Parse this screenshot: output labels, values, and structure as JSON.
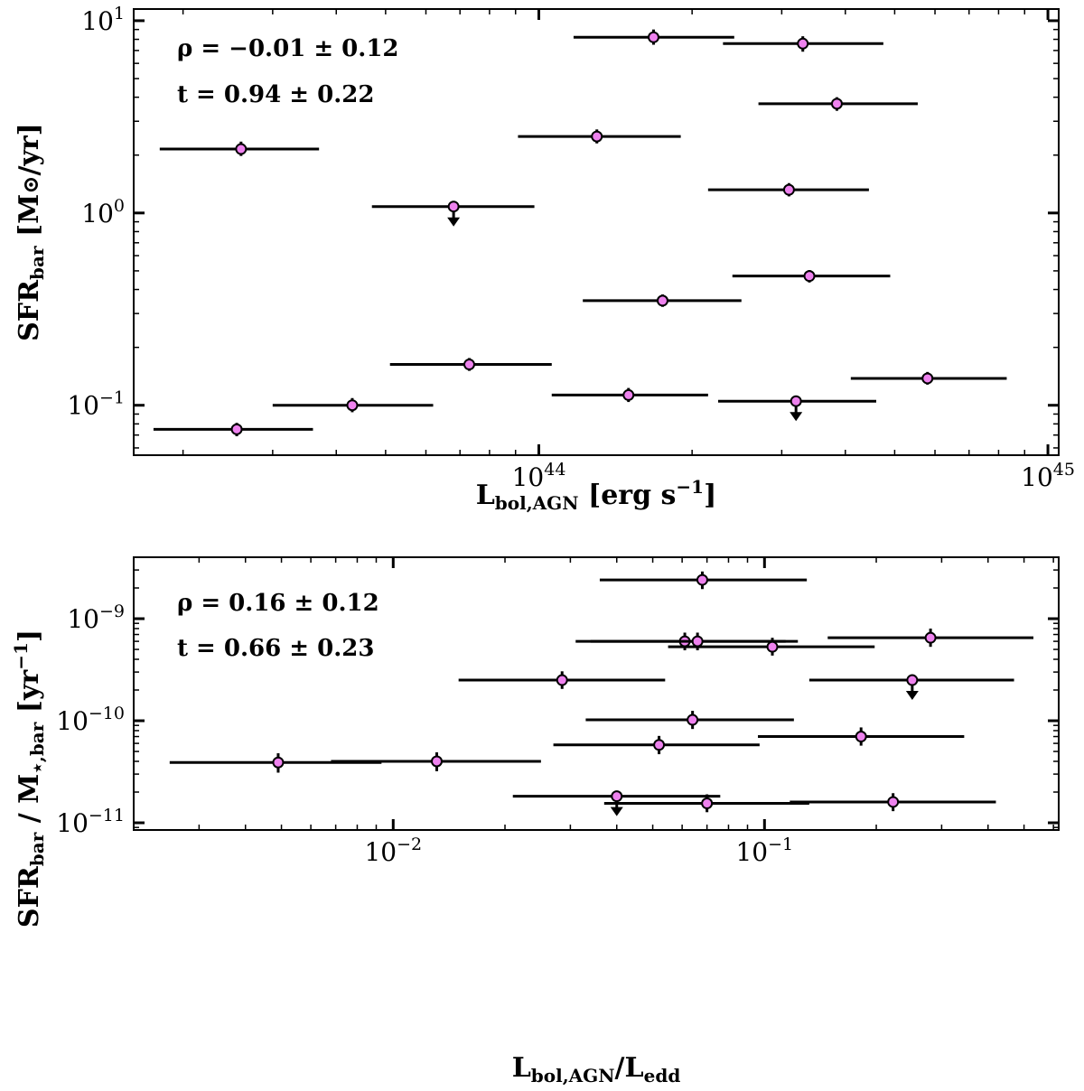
{
  "chart_data": [
    {
      "type": "scatter",
      "panel": "top",
      "xscale": "log",
      "yscale": "log",
      "xlim": [
        1.6e+43,
        1.05e+45
      ],
      "ylim": [
        0.055,
        11.5
      ],
      "xlabel": {
        "main": "L",
        "sub": "bol,AGN",
        "unit": "[erg s",
        "unit_sup": "−1",
        "unit_end": "]"
      },
      "ylabel": {
        "main": "SFR",
        "sub": "bar",
        "unit": "[M",
        "unit_sym": "⊙",
        "unit_end": "/yr]"
      },
      "xticks": [
        {
          "value": 1e+44,
          "base": "10",
          "exp": "44"
        },
        {
          "value": 1e+45,
          "base": "10",
          "exp": "45"
        }
      ],
      "yticks": [
        {
          "value": 0.1,
          "base": "10",
          "exp": "−1"
        },
        {
          "value": 1,
          "base": "10",
          "exp": "0"
        },
        {
          "value": 10,
          "base": "10",
          "exp": "1"
        }
      ],
      "annotations": [
        {
          "text": "ρ = −0.01 ± 0.12"
        },
        {
          "text": "t = 0.94 ± 0.22"
        }
      ],
      "marker_color": "#ee82ee",
      "points": [
        {
          "x": 2.55e+43,
          "xlo": 1.75e+43,
          "xhi": 3.6e+43,
          "y": 0.075,
          "ylo": 0.069,
          "yhi": 0.081,
          "upper_limit": false
        },
        {
          "x": 2.6e+43,
          "xlo": 1.8e+43,
          "xhi": 3.7e+43,
          "y": 2.15,
          "ylo": 1.98,
          "yhi": 2.35,
          "upper_limit": false
        },
        {
          "x": 4.3e+43,
          "xlo": 3e+43,
          "xhi": 6.2e+43,
          "y": 0.1,
          "ylo": 0.092,
          "yhi": 0.109,
          "upper_limit": false
        },
        {
          "x": 6.8e+43,
          "xlo": 4.7e+43,
          "xhi": 9.8e+43,
          "y": 1.08,
          "ylo": null,
          "yhi": null,
          "upper_limit": true
        },
        {
          "x": 7.3e+43,
          "xlo": 5.1e+43,
          "xhi": 1.06e+44,
          "y": 0.163,
          "ylo": 0.151,
          "yhi": 0.176,
          "upper_limit": false
        },
        {
          "x": 1.3e+44,
          "xlo": 9.1e+43,
          "xhi": 1.9e+44,
          "y": 2.5,
          "ylo": 2.3,
          "yhi": 2.72,
          "upper_limit": false
        },
        {
          "x": 1.5e+44,
          "xlo": 1.06e+44,
          "xhi": 2.15e+44,
          "y": 0.113,
          "ylo": 0.104,
          "yhi": 0.123,
          "upper_limit": false
        },
        {
          "x": 1.68e+44,
          "xlo": 1.17e+44,
          "xhi": 2.42e+44,
          "y": 8.2,
          "ylo": 7.5,
          "yhi": 9.0,
          "upper_limit": false
        },
        {
          "x": 1.75e+44,
          "xlo": 1.22e+44,
          "xhi": 2.5e+44,
          "y": 0.35,
          "ylo": 0.325,
          "yhi": 0.377,
          "upper_limit": false
        },
        {
          "x": 3.1e+44,
          "xlo": 2.15e+44,
          "xhi": 4.45e+44,
          "y": 1.32,
          "ylo": 1.22,
          "yhi": 1.43,
          "upper_limit": false
        },
        {
          "x": 3.2e+44,
          "xlo": 2.25e+44,
          "xhi": 4.6e+44,
          "y": 0.105,
          "ylo": null,
          "yhi": null,
          "upper_limit": true
        },
        {
          "x": 3.3e+44,
          "xlo": 2.3e+44,
          "xhi": 4.75e+44,
          "y": 7.6,
          "ylo": 6.9,
          "yhi": 8.3,
          "upper_limit": false
        },
        {
          "x": 3.4e+44,
          "xlo": 2.4e+44,
          "xhi": 4.9e+44,
          "y": 0.47,
          "ylo": 0.435,
          "yhi": 0.505,
          "upper_limit": false
        },
        {
          "x": 3.85e+44,
          "xlo": 2.7e+44,
          "xhi": 5.55e+44,
          "y": 3.7,
          "ylo": 3.4,
          "yhi": 4.0,
          "upper_limit": false
        },
        {
          "x": 5.8e+44,
          "xlo": 4.1e+44,
          "xhi": 8.3e+44,
          "y": 0.138,
          "ylo": 0.128,
          "yhi": 0.149,
          "upper_limit": false
        }
      ]
    },
    {
      "type": "scatter",
      "panel": "bottom",
      "xscale": "log",
      "yscale": "log",
      "xlim": [
        0.002,
        0.62
      ],
      "ylim": [
        8.5e-12,
        4e-09
      ],
      "xlabel": {
        "main": "L",
        "sub": "bol,AGN",
        "unit": "/L",
        "unit_sub": "edd"
      },
      "ylabel": {
        "main": "SFR",
        "sub": "bar",
        "unit": " / M",
        "unit_sub": "⋆,bar",
        "unit2": " [yr",
        "unit_sup": "−1",
        "unit_end": "]"
      },
      "xticks": [
        {
          "value": 0.01,
          "base": "10",
          "exp": "−2"
        },
        {
          "value": 0.1,
          "base": "10",
          "exp": "−1"
        }
      ],
      "yticks": [
        {
          "value": 1e-11,
          "base": "10",
          "exp": "−11"
        },
        {
          "value": 1e-10,
          "base": "10",
          "exp": "−10"
        },
        {
          "value": 1e-09,
          "base": "10",
          "exp": "−9"
        }
      ],
      "annotations": [
        {
          "text": "ρ = 0.16 ± 0.12"
        },
        {
          "text": "t = 0.66 ± 0.23"
        }
      ],
      "marker_color": "#ee82ee",
      "points": [
        {
          "x": 0.0049,
          "xlo": 0.0025,
          "xhi": 0.0093,
          "y": 3.9e-11,
          "ylo": 3.1e-11,
          "yhi": 4.8e-11,
          "upper_limit": false
        },
        {
          "x": 0.0131,
          "xlo": 0.0068,
          "xhi": 0.025,
          "y": 4e-11,
          "ylo": 3.2e-11,
          "yhi": 4.9e-11,
          "upper_limit": false
        },
        {
          "x": 0.0285,
          "xlo": 0.015,
          "xhi": 0.054,
          "y": 2.5e-10,
          "ylo": 2.05e-10,
          "yhi": 3.05e-10,
          "upper_limit": false
        },
        {
          "x": 0.04,
          "xlo": 0.021,
          "xhi": 0.076,
          "y": 1.82e-11,
          "ylo": null,
          "yhi": null,
          "upper_limit": true
        },
        {
          "x": 0.052,
          "xlo": 0.027,
          "xhi": 0.097,
          "y": 5.8e-11,
          "ylo": 4.7e-11,
          "yhi": 7.1e-11,
          "upper_limit": false
        },
        {
          "x": 0.061,
          "xlo": 0.031,
          "xhi": 0.114,
          "y": 6e-10,
          "ylo": 4.9e-10,
          "yhi": 7.3e-10,
          "upper_limit": false
        },
        {
          "x": 0.064,
          "xlo": 0.033,
          "xhi": 0.12,
          "y": 1.02e-10,
          "ylo": 8.3e-11,
          "yhi": 1.25e-10,
          "upper_limit": false
        },
        {
          "x": 0.066,
          "xlo": 0.034,
          "xhi": 0.123,
          "y": 6e-10,
          "ylo": 4.9e-10,
          "yhi": 7.3e-10,
          "upper_limit": false
        },
        {
          "x": 0.068,
          "xlo": 0.036,
          "xhi": 0.13,
          "y": 2.4e-09,
          "ylo": 1.95e-09,
          "yhi": 2.9e-09,
          "upper_limit": false
        },
        {
          "x": 0.07,
          "xlo": 0.037,
          "xhi": 0.132,
          "y": 1.55e-11,
          "ylo": 1.27e-11,
          "yhi": 1.9e-11,
          "upper_limit": false
        },
        {
          "x": 0.105,
          "xlo": 0.055,
          "xhi": 0.198,
          "y": 5.3e-10,
          "ylo": 4.35e-10,
          "yhi": 6.5e-10,
          "upper_limit": false
        },
        {
          "x": 0.182,
          "xlo": 0.096,
          "xhi": 0.345,
          "y": 7e-11,
          "ylo": 5.7e-11,
          "yhi": 8.6e-11,
          "upper_limit": false
        },
        {
          "x": 0.222,
          "xlo": 0.117,
          "xhi": 0.42,
          "y": 1.6e-11,
          "ylo": 1.3e-11,
          "yhi": 1.95e-11,
          "upper_limit": false
        },
        {
          "x": 0.25,
          "xlo": 0.132,
          "xhi": 0.47,
          "y": 2.5e-10,
          "ylo": null,
          "yhi": null,
          "upper_limit": true
        },
        {
          "x": 0.28,
          "xlo": 0.148,
          "xhi": 0.53,
          "y": 6.5e-10,
          "ylo": 5.3e-10,
          "yhi": 8e-10,
          "upper_limit": false
        }
      ]
    }
  ]
}
